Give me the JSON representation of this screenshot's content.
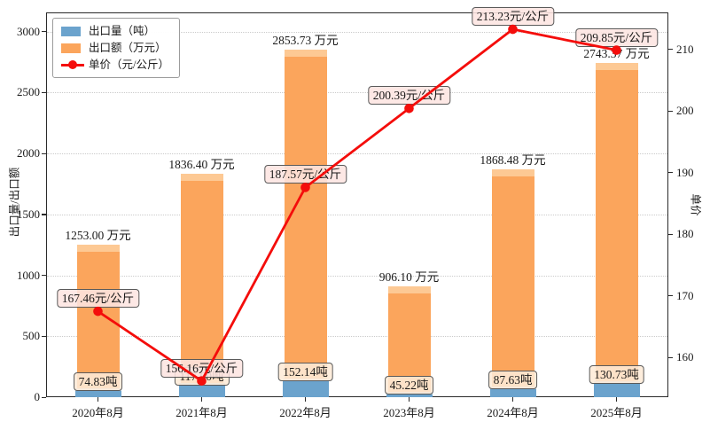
{
  "chart_data": {
    "type": "combo",
    "categories": [
      "2020年8月",
      "2021年8月",
      "2022年8月",
      "2023年8月",
      "2024年8月",
      "2025年8月"
    ],
    "series": [
      {
        "name": "出口量（吨）",
        "type": "bar",
        "axis": "left",
        "color": "#6ba3cd",
        "values": [
          74.83,
          117.6,
          152.14,
          45.22,
          87.63,
          130.73
        ],
        "labels": [
          "74.83吨",
          "117.60吨",
          "152.14吨",
          "45.22吨",
          "87.63吨",
          "130.73吨"
        ]
      },
      {
        "name": "出口额（万元）",
        "type": "bar",
        "axis": "left",
        "color": "#fba55c",
        "values": [
          1253.0,
          1836.4,
          2853.73,
          906.1,
          1868.48,
          2743.37
        ],
        "labels": [
          "1253.00 万元",
          "1836.40 万元",
          "2853.73 万元",
          "906.10 万元",
          "1868.48 万元",
          "2743.37 万元"
        ]
      },
      {
        "name": "单价（元/公斤）",
        "type": "line",
        "axis": "right",
        "color": "#f40d0b",
        "values": [
          167.46,
          156.16,
          187.57,
          200.39,
          213.23,
          209.85
        ],
        "labels": [
          "167.46元/公斤",
          "156.16元/公斤",
          "187.57元/公斤",
          "200.39元/公斤",
          "213.23元/公斤",
          "209.85元/公斤"
        ]
      }
    ],
    "left_axis": {
      "label": "出口量/出口额",
      "ticks": [
        0,
        500,
        1000,
        1500,
        2000,
        2500,
        3000
      ],
      "range": [
        0,
        3160
      ]
    },
    "right_axis": {
      "label": "单价",
      "ticks": [
        160,
        170,
        180,
        190,
        200,
        210
      ],
      "range": [
        153.5,
        216
      ]
    },
    "grid": "horizontal dotted at left-axis ticks",
    "legend_position": "top-left",
    "title": ""
  },
  "colors": {
    "bar_volume": "#6ba3cd",
    "bar_amount": "#fba55c",
    "line_price": "#f40d0b",
    "grid": "#cbcbcb",
    "spine": "#2a2a2a",
    "ton_badge_bg": "#fdebd7",
    "price_badge_bg": "#fde5e1"
  }
}
